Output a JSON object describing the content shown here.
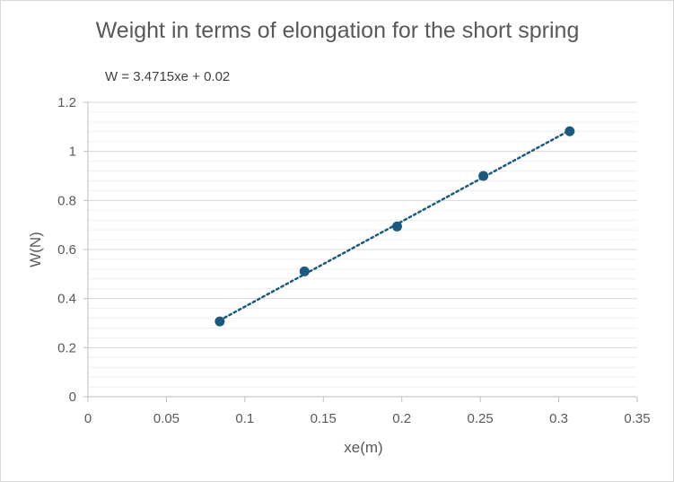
{
  "chart_data": {
    "type": "scatter",
    "title": "Weight in terms of elongation for the short spring",
    "xlabel": "xe(m)",
    "ylabel": "W(N)",
    "xlim": [
      0,
      0.35
    ],
    "ylim": [
      0,
      1.2
    ],
    "x_ticks": [
      "0",
      "0.05",
      "0.1",
      "0.15",
      "0.2",
      "0.25",
      "0.3",
      "0.35"
    ],
    "y_ticks": [
      "0",
      "0.2",
      "0.4",
      "0.6",
      "0.8",
      "1",
      "1.2"
    ],
    "x_tick_step": 0.05,
    "y_major_step": 0.2,
    "y_minor_step": 0.04,
    "grid": true,
    "legend": "none",
    "series": [
      {
        "x": [
          0.084,
          0.138,
          0.197,
          0.252,
          0.307
        ],
        "y": [
          0.307,
          0.511,
          0.694,
          0.9,
          1.082
        ],
        "color": "#1a5a7e"
      }
    ],
    "trendline": {
      "type": "linear",
      "slope": 3.4715,
      "intercept": 0.02,
      "style": "dotted",
      "color": "#1a5a7e",
      "equation_label": "W = 3.4715xe + 0.02"
    }
  }
}
